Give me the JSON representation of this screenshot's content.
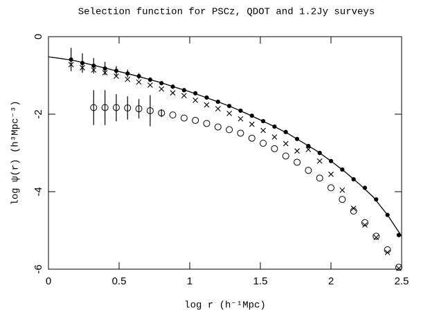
{
  "chart_data": {
    "type": "scatter",
    "title": "Selection function for PSCz, QDOT and 1.2Jy surveys",
    "xlabel": "log r (h⁻¹Mpc)",
    "ylabel": "log ψ(r) (h³Mpc⁻³)",
    "xlim": [
      0,
      2.5
    ],
    "ylim": [
      -6,
      0
    ],
    "xticks": [
      0,
      0.5,
      1,
      1.5,
      2,
      2.5
    ],
    "yticks": [
      0,
      -2,
      -4,
      -6
    ],
    "x": [
      0.16,
      0.24,
      0.32,
      0.4,
      0.48,
      0.56,
      0.64,
      0.72,
      0.8,
      0.88,
      0.96,
      1.04,
      1.12,
      1.2,
      1.28,
      1.36,
      1.44,
      1.52,
      1.6,
      1.68,
      1.76,
      1.84,
      1.92,
      2.0,
      2.08,
      2.16,
      2.24,
      2.32,
      2.4,
      2.48
    ],
    "series": [
      {
        "marker": "dot",
        "color": "#000000",
        "values": [
          -0.59,
          -0.68,
          -0.75,
          -0.82,
          -0.88,
          -0.95,
          -1.02,
          -1.11,
          -1.2,
          -1.29,
          -1.38,
          -1.46,
          -1.57,
          -1.68,
          -1.79,
          -1.91,
          -2.04,
          -2.18,
          -2.32,
          -2.46,
          -2.64,
          -2.82,
          -3.0,
          -3.21,
          -3.43,
          -3.68,
          -3.9,
          -4.2,
          -4.6,
          -5.12
        ],
        "errors": [
          0.3,
          0.25,
          0.2,
          0.17,
          0.12,
          0.1,
          0.08,
          0.06,
          null,
          null,
          null,
          null,
          null,
          null,
          null,
          null,
          null,
          null,
          null,
          null,
          null,
          null,
          null,
          null,
          null,
          null,
          null,
          null,
          null,
          null
        ]
      },
      {
        "marker": "cross",
        "color": "#000000",
        "values": [
          -0.72,
          -0.8,
          -0.86,
          -0.93,
          -1.02,
          -1.1,
          -1.17,
          -1.25,
          -1.35,
          -1.45,
          -1.52,
          -1.64,
          -1.76,
          -1.86,
          -1.98,
          -2.12,
          -2.26,
          -2.42,
          -2.59,
          -2.76,
          -2.95,
          -2.91,
          -3.21,
          -3.55,
          -3.96,
          -4.43,
          -4.86,
          -5.18,
          -5.57,
          -5.98
        ]
      },
      {
        "marker": "circle",
        "color": "#000000",
        "values": [
          null,
          null,
          -1.83,
          -1.83,
          -1.83,
          -1.84,
          -1.86,
          -1.91,
          -1.97,
          -2.02,
          -2.1,
          -2.16,
          -2.24,
          -2.33,
          -2.4,
          -2.49,
          -2.62,
          -2.75,
          -2.89,
          -3.08,
          -3.24,
          -3.45,
          -3.65,
          -3.9,
          -4.2,
          -4.5,
          -4.8,
          -5.15,
          -5.5,
          -5.95
        ],
        "errors": [
          null,
          null,
          0.45,
          0.45,
          0.35,
          0.3,
          0.25,
          0.4,
          0.1,
          null,
          null,
          null,
          null,
          null,
          null,
          null,
          null,
          null,
          null,
          null,
          null,
          null,
          null,
          null,
          null,
          null,
          null,
          null,
          null,
          null
        ]
      }
    ],
    "fit": {
      "color": "#000000",
      "x": [
        0,
        0.1,
        0.2,
        0.3,
        0.4,
        0.5,
        0.6,
        0.7,
        0.8,
        0.9,
        1.0,
        1.1,
        1.2,
        1.3,
        1.4,
        1.5,
        1.6,
        1.7,
        1.8,
        1.9,
        2.0,
        2.1,
        2.2,
        2.3,
        2.4,
        2.5
      ],
      "values": [
        -0.52,
        -0.57,
        -0.63,
        -0.72,
        -0.81,
        -0.9,
        -0.99,
        -1.09,
        -1.19,
        -1.31,
        -1.42,
        -1.55,
        -1.68,
        -1.82,
        -1.98,
        -2.15,
        -2.32,
        -2.51,
        -2.73,
        -2.95,
        -3.21,
        -3.49,
        -3.8,
        -4.14,
        -4.6,
        -5.15
      ]
    }
  }
}
